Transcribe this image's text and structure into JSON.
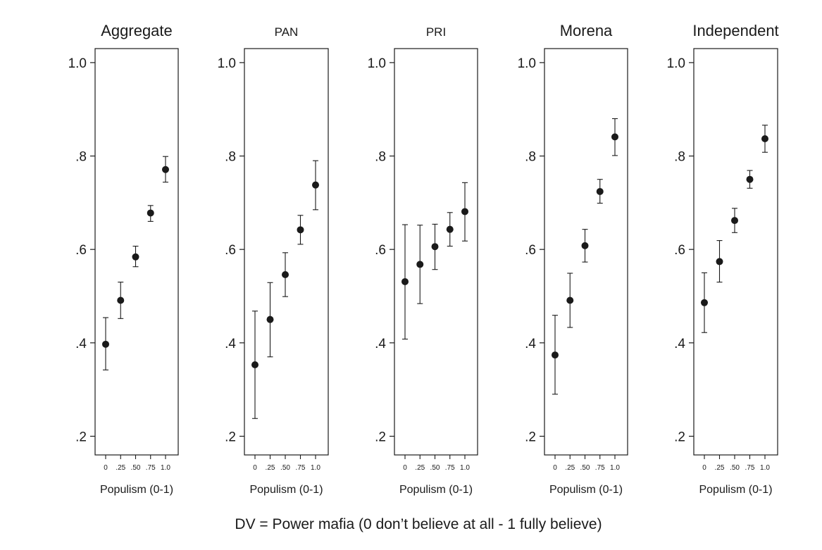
{
  "chart_data": [
    {
      "type": "scatter",
      "title": "Aggregate",
      "xlabel": "Populism (0-1)",
      "x": [
        0,
        0.25,
        0.5,
        0.75,
        1.0
      ],
      "x_tick_labels": [
        "0",
        ".25",
        ".50",
        ".75",
        "1.0"
      ],
      "y_tick_labels": [
        "1.0",
        ".8",
        ".6",
        ".4",
        ".2"
      ],
      "y_ticks": [
        1.0,
        0.8,
        0.6,
        0.4,
        0.2
      ],
      "ylim": [
        0.16,
        1.03
      ],
      "values": [
        0.397,
        0.491,
        0.584,
        0.678,
        0.771
      ],
      "ci_low": [
        0.342,
        0.452,
        0.563,
        0.66,
        0.744
      ],
      "ci_high": [
        0.454,
        0.53,
        0.607,
        0.694,
        0.799
      ]
    },
    {
      "type": "scatter",
      "title": "PAN",
      "xlabel": "Populism (0-1)",
      "x": [
        0,
        0.25,
        0.5,
        0.75,
        1.0
      ],
      "x_tick_labels": [
        "0",
        ".25",
        ".50",
        ".75",
        "1.0"
      ],
      "y_tick_labels": [
        "1.0",
        ".8",
        ".6",
        ".4",
        ".2"
      ],
      "y_ticks": [
        1.0,
        0.8,
        0.6,
        0.4,
        0.2
      ],
      "ylim": [
        0.16,
        1.03
      ],
      "values": [
        0.353,
        0.45,
        0.546,
        0.642,
        0.738
      ],
      "ci_low": [
        0.238,
        0.37,
        0.499,
        0.611,
        0.685
      ],
      "ci_high": [
        0.468,
        0.529,
        0.593,
        0.673,
        0.79
      ]
    },
    {
      "type": "scatter",
      "title": "PRI",
      "xlabel": "Populism (0-1)",
      "x": [
        0,
        0.25,
        0.5,
        0.75,
        1.0
      ],
      "x_tick_labels": [
        "0",
        ".25",
        ".50",
        ".75",
        "1.0"
      ],
      "y_tick_labels": [
        "1.0",
        ".8",
        ".6",
        ".4",
        ".2"
      ],
      "y_ticks": [
        1.0,
        0.8,
        0.6,
        0.4,
        0.2
      ],
      "ylim": [
        0.16,
        1.03
      ],
      "values": [
        0.531,
        0.568,
        0.606,
        0.643,
        0.681
      ],
      "ci_low": [
        0.408,
        0.484,
        0.557,
        0.607,
        0.618
      ],
      "ci_high": [
        0.653,
        0.652,
        0.654,
        0.679,
        0.743
      ]
    },
    {
      "type": "scatter",
      "title": "Morena",
      "xlabel": "Populism (0-1)",
      "x": [
        0,
        0.25,
        0.5,
        0.75,
        1.0
      ],
      "x_tick_labels": [
        "0",
        ".25",
        ".50",
        ".75",
        "1.0"
      ],
      "y_tick_labels": [
        "1.0",
        ".8",
        ".6",
        ".4",
        ".2"
      ],
      "y_ticks": [
        1.0,
        0.8,
        0.6,
        0.4,
        0.2
      ],
      "ylim": [
        0.16,
        1.03
      ],
      "values": [
        0.374,
        0.491,
        0.608,
        0.724,
        0.841
      ],
      "ci_low": [
        0.29,
        0.433,
        0.573,
        0.699,
        0.801
      ],
      "ci_high": [
        0.459,
        0.549,
        0.643,
        0.75,
        0.88
      ]
    },
    {
      "type": "scatter",
      "title": "Independent",
      "xlabel": "Populism (0-1)",
      "x": [
        0,
        0.25,
        0.5,
        0.75,
        1.0
      ],
      "x_tick_labels": [
        "0",
        ".25",
        ".50",
        ".75",
        "1.0"
      ],
      "y_tick_labels": [
        "1.0",
        ".8",
        ".6",
        ".4",
        ".2"
      ],
      "y_ticks": [
        1.0,
        0.8,
        0.6,
        0.4,
        0.2
      ],
      "ylim": [
        0.16,
        1.03
      ],
      "values": [
        0.486,
        0.574,
        0.662,
        0.75,
        0.837
      ],
      "ci_low": [
        0.422,
        0.53,
        0.636,
        0.731,
        0.808
      ],
      "ci_high": [
        0.55,
        0.619,
        0.688,
        0.769,
        0.866
      ]
    }
  ],
  "caption": "DV = Power mafia (0 don’t believe at all - 1 fully believe)",
  "colors": {
    "marker": "#1a1a1a",
    "axis": "#1a1a1a",
    "background": "#ffffff"
  }
}
